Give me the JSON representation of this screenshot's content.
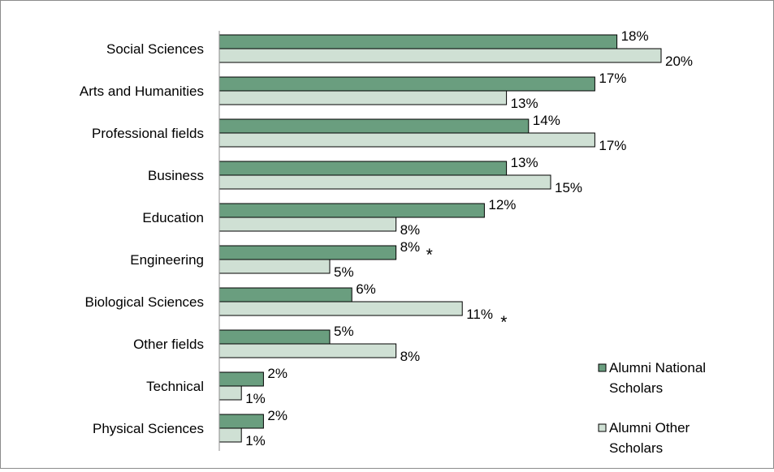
{
  "chart_data": {
    "type": "bar",
    "orientation": "horizontal",
    "title": "",
    "xlabel": "",
    "ylabel": "",
    "categories": [
      "Social Sciences",
      "Arts and Humanities",
      "Professional fields",
      "Business",
      "Education",
      "Engineering",
      "Biological Sciences",
      "Other fields",
      "Technical",
      "Physical Sciences"
    ],
    "series": [
      {
        "name": "Alumni National Scholars",
        "values": [
          18,
          17,
          14,
          13,
          12,
          8,
          6,
          5,
          2,
          2
        ],
        "labels": [
          "18%",
          "17%",
          "14%",
          "13%",
          "12%",
          "8%",
          "6%",
          "5%",
          "2%",
          "2%"
        ],
        "color": "#6a9e7f"
      },
      {
        "name": "Alumni Other Scholars",
        "values": [
          20,
          13,
          17,
          15,
          8,
          5,
          11,
          8,
          1,
          1
        ],
        "labels": [
          "20%",
          "13%",
          "17%",
          "15%",
          "8%",
          "5%",
          "11%",
          "8%",
          "1%",
          "1%"
        ],
        "color": "#cfe0d4"
      }
    ],
    "annotations": [
      {
        "category_index": 5,
        "series_index": 0,
        "text": "*"
      },
      {
        "category_index": 6,
        "series_index": 1,
        "text": "*"
      }
    ],
    "xlim": [
      0,
      21
    ],
    "grid": false,
    "legend_position": "bottom-right",
    "legend": [
      "Alumni National",
      "Scholars",
      "Alumni Other",
      "Scholars"
    ]
  }
}
